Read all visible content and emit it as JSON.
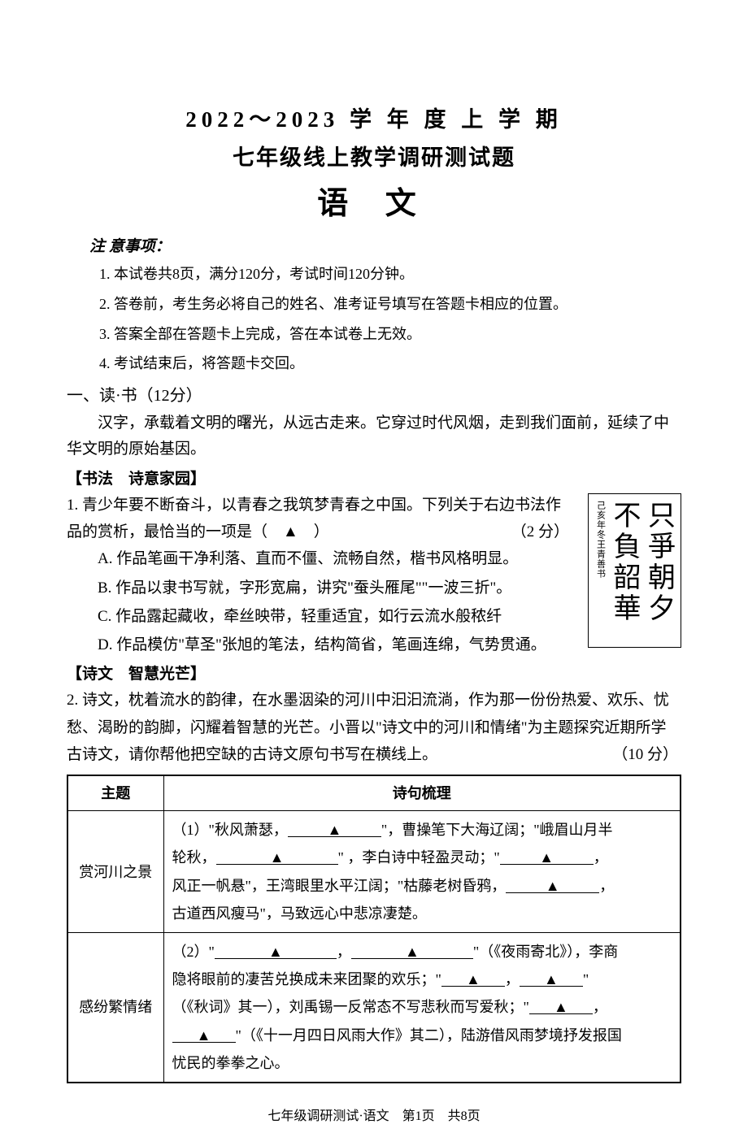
{
  "title": {
    "line1": "2022～2023 学 年 度 上 学 期",
    "line2": "七年级线上教学调研测试题",
    "line3": "语 文"
  },
  "notice": {
    "header": "注 意事项：",
    "items": [
      "1. 本试卷共8页，满分120分，考试时间120分钟。",
      "2. 答卷前，考生务必将自己的姓名、准考证号填写在答题卡相应的位置。",
      "3. 答案全部在答题卡上完成，答在本试卷上无效。",
      "4. 考试结束后，将答题卡交回。"
    ]
  },
  "section1": {
    "header": "一、读·书（12分）",
    "intro": "汉字，承载着文明的曙光，从远古走来。它穿过时代风烟，走到我们面前，延续了中华文明的原始基因。"
  },
  "sub1": {
    "header": "【书法　诗意家园】",
    "q1_prefix": "1. 青少年要不断奋斗，以青春之我筑梦青春之中国。下列关于右边书法作品的赏析，最恰当的一项是（　▲　）",
    "q1_score": "（2 分）",
    "options": {
      "a": "A. 作品笔画干净利落、直而不僵、流畅自然，楷书风格明显。",
      "b": "B. 作品以隶书写就，字形宽扁，讲究\"蚕头雁尾\"\"一波三折\"。",
      "c": "C. 作品露起藏收，牵丝映带，轻重适宜，如行云流水般秾纤",
      "d": "D. 作品模仿\"草圣\"张旭的笔法，结构简省，笔画连绵，气势贯通。"
    },
    "calligraphy": {
      "col1": "只爭朝夕",
      "col2": "不負韶華",
      "small": "己亥年冬王青善书"
    }
  },
  "sub2": {
    "header": "【诗文　智慧光芒】",
    "q2": "2. 诗文，枕着流水的韵律，在水墨洇染的河川中汩汩流淌，作为那一份份热爱、欢乐、忧愁、渴盼的韵脚，闪耀着智慧的光芒。小晋以\"诗文中的河川和情绪\"为主题探究近期所学古诗文，请你帮他把空缺的古诗文原句书写在横线上。",
    "q2_score": "（10 分）"
  },
  "table": {
    "headers": {
      "theme": "主题",
      "content": "诗句梳理"
    },
    "row1": {
      "theme": "赏河川之景",
      "pre1": "（1）\"秋风萧瑟，",
      "post1": "\"，曹操笔下大海辽阔；\"峨眉山月半",
      "pre2": "轮秋，",
      "post2": "\" ，李白诗中轻盈灵动；\"",
      "post3": "，",
      "pre4": "风正一帆悬\"，王湾眼里水平江阔；\"枯藤老树昏鸦，",
      "post4": "，",
      "pre5": "古道西风瘦马\"，马致远心中悲凉凄楚。"
    },
    "row2": {
      "theme": "感纷繁情绪",
      "pre1": "（2）\"",
      "mid1": "，",
      "post1": "\"（《夜雨寄北》），李商",
      "pre2": "隐将眼前的凄苦兑换成未来团聚的欢乐；\"",
      "mid2": "，",
      "post2": "\"",
      "pre3": "（《秋词》其一），刘禹锡一反常态不写悲秋而写爱秋；\"",
      "post3": "，",
      "post4": "\"（《十一月四日风雨大作》其二），陆游借风雨梦境抒发报国",
      "pre5": "忧民的拳拳之心。"
    }
  },
  "footer": "七年级调研测试·语文　第1页　共8页"
}
